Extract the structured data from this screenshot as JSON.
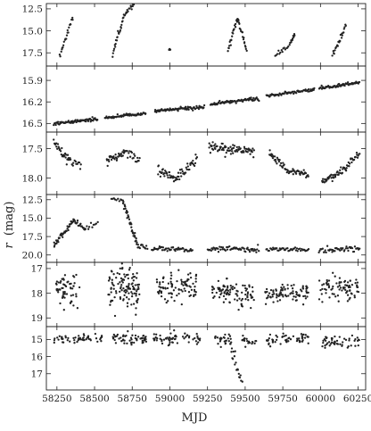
{
  "chart_data": {
    "type": "scatter",
    "xlabel": "MJD",
    "ylabel_left": "r",
    "ylabel_unit": "(mag)",
    "xlim": [
      58180,
      60300
    ],
    "xticks": [
      58250,
      58500,
      58750,
      59000,
      59250,
      59500,
      59750,
      60000,
      60250
    ],
    "xtick_labels": [
      "58250",
      "58500",
      "58750",
      "59000",
      "59250",
      "59500",
      "59750",
      "60000",
      "60250"
    ],
    "marker_color": "#222222",
    "y_inverted": true,
    "panels": [
      {
        "ylim": [
          11.9,
          19.0
        ],
        "yticks": [
          12.5,
          15.0,
          17.5
        ],
        "ytick_labels": [
          "12.5",
          "15.0",
          "17.5"
        ],
        "segments": [
          {
            "type": "line",
            "x0": 58270,
            "x1": 58355,
            "y0": 17.6,
            "y1": 13.5,
            "n": 22,
            "spread": 0.35
          },
          {
            "type": "line",
            "x0": 58620,
            "x1": 58690,
            "y0": 17.7,
            "y1": 13.6,
            "n": 22,
            "spread": 0.4
          },
          {
            "type": "line",
            "x0": 58690,
            "x1": 58760,
            "y0": 13.3,
            "y1": 12.0,
            "n": 18,
            "spread": 0.3
          },
          {
            "type": "cluster",
            "x0": 58990,
            "x1": 59005,
            "y": 17.1,
            "n": 5,
            "spread": 0.15
          },
          {
            "type": "line",
            "x0": 59385,
            "x1": 59450,
            "y0": 17.3,
            "y1": 13.5,
            "n": 22,
            "spread": 0.35
          },
          {
            "type": "line",
            "x0": 59450,
            "x1": 59510,
            "y0": 13.5,
            "y1": 17.2,
            "n": 20,
            "spread": 0.35
          },
          {
            "type": "line",
            "x0": 59700,
            "x1": 59800,
            "y0": 17.8,
            "y1": 16.5,
            "n": 16,
            "spread": 0.3
          },
          {
            "type": "line",
            "x0": 59800,
            "x1": 59830,
            "y0": 16.5,
            "y1": 15.5,
            "n": 10,
            "spread": 0.4
          },
          {
            "type": "line",
            "x0": 60080,
            "x1": 60170,
            "y0": 17.8,
            "y1": 14.5,
            "n": 24,
            "spread": 0.35
          }
        ]
      },
      {
        "ylim": [
          15.7,
          16.62
        ],
        "yticks": [
          15.9,
          16.2,
          16.5
        ],
        "ytick_labels": [
          "15.9",
          "16.2",
          "16.5"
        ],
        "segments": [
          {
            "type": "line",
            "x0": 58230,
            "x1": 58520,
            "y0": 16.5,
            "y1": 16.44,
            "n": 70,
            "spread": 0.025
          },
          {
            "type": "line",
            "x0": 58570,
            "x1": 58840,
            "y0": 16.42,
            "y1": 16.36,
            "n": 60,
            "spread": 0.02
          },
          {
            "type": "line",
            "x0": 58900,
            "x1": 59230,
            "y0": 16.33,
            "y1": 16.27,
            "n": 80,
            "spread": 0.025
          },
          {
            "type": "line",
            "x0": 59270,
            "x1": 59590,
            "y0": 16.23,
            "y1": 16.15,
            "n": 80,
            "spread": 0.025
          },
          {
            "type": "line",
            "x0": 59640,
            "x1": 59960,
            "y0": 16.12,
            "y1": 16.02,
            "n": 70,
            "spread": 0.02
          },
          {
            "type": "line",
            "x0": 59990,
            "x1": 60260,
            "y0": 16.01,
            "y1": 15.93,
            "n": 70,
            "spread": 0.02
          }
        ]
      },
      {
        "ylim": [
          17.22,
          18.28
        ],
        "yticks": [
          17.5,
          18.0
        ],
        "ytick_labels": [
          "17.5",
          "18.0"
        ],
        "segments": [
          {
            "type": "line",
            "x0": 58230,
            "x1": 58330,
            "y0": 17.4,
            "y1": 17.7,
            "n": 28,
            "spread": 0.09
          },
          {
            "type": "line",
            "x0": 58330,
            "x1": 58410,
            "y0": 17.7,
            "y1": 17.8,
            "n": 14,
            "spread": 0.08
          },
          {
            "type": "line",
            "x0": 58580,
            "x1": 58700,
            "y0": 17.7,
            "y1": 17.58,
            "n": 32,
            "spread": 0.08
          },
          {
            "type": "line",
            "x0": 58700,
            "x1": 58800,
            "y0": 17.55,
            "y1": 17.7,
            "n": 20,
            "spread": 0.08
          },
          {
            "type": "line",
            "x0": 58920,
            "x1": 59050,
            "y0": 17.85,
            "y1": 18.05,
            "n": 35,
            "spread": 0.08
          },
          {
            "type": "line",
            "x0": 59050,
            "x1": 59180,
            "y0": 18.0,
            "y1": 17.65,
            "n": 32,
            "spread": 0.09
          },
          {
            "type": "line",
            "x0": 59260,
            "x1": 59420,
            "y0": 17.45,
            "y1": 17.55,
            "n": 45,
            "spread": 0.09
          },
          {
            "type": "line",
            "x0": 59420,
            "x1": 59560,
            "y0": 17.5,
            "y1": 17.55,
            "n": 35,
            "spread": 0.08
          },
          {
            "type": "line",
            "x0": 59660,
            "x1": 59780,
            "y0": 17.6,
            "y1": 17.85,
            "n": 30,
            "spread": 0.08
          },
          {
            "type": "line",
            "x0": 59780,
            "x1": 59920,
            "y0": 17.85,
            "y1": 17.95,
            "n": 32,
            "spread": 0.06
          },
          {
            "type": "line",
            "x0": 60010,
            "x1": 60100,
            "y0": 18.05,
            "y1": 17.95,
            "n": 25,
            "spread": 0.05
          },
          {
            "type": "line",
            "x0": 60100,
            "x1": 60260,
            "y0": 17.95,
            "y1": 17.58,
            "n": 40,
            "spread": 0.07
          }
        ]
      },
      {
        "ylim": [
          11.8,
          21.0
        ],
        "yticks": [
          12.5,
          15.0,
          17.5,
          20.0
        ],
        "ytick_labels": [
          "12.5",
          "15.0",
          "17.5",
          "20.0"
        ],
        "segments": [
          {
            "type": "line",
            "x0": 58230,
            "x1": 58360,
            "y0": 18.7,
            "y1": 15.3,
            "n": 38,
            "spread": 0.35
          },
          {
            "type": "line",
            "x0": 58360,
            "x1": 58440,
            "y0": 15.3,
            "y1": 16.6,
            "n": 18,
            "spread": 0.4
          },
          {
            "type": "line",
            "x0": 58440,
            "x1": 58520,
            "y0": 16.5,
            "y1": 15.8,
            "n": 10,
            "spread": 0.4
          },
          {
            "type": "line",
            "x0": 58610,
            "x1": 58690,
            "y0": 12.2,
            "y1": 12.6,
            "n": 10,
            "spread": 0.3
          },
          {
            "type": "line",
            "x0": 58690,
            "x1": 58780,
            "y0": 12.8,
            "y1": 18.3,
            "n": 35,
            "spread": 0.5
          },
          {
            "type": "line",
            "x0": 58780,
            "x1": 58850,
            "y0": 18.8,
            "y1": 19.0,
            "n": 14,
            "spread": 0.35
          },
          {
            "type": "line",
            "x0": 58880,
            "x1": 59150,
            "y0": 19.1,
            "y1": 19.3,
            "n": 50,
            "spread": 0.3
          },
          {
            "type": "line",
            "x0": 59250,
            "x1": 59590,
            "y0": 19.1,
            "y1": 19.3,
            "n": 60,
            "spread": 0.3
          },
          {
            "type": "line",
            "x0": 59640,
            "x1": 59920,
            "y0": 19.2,
            "y1": 19.3,
            "n": 45,
            "spread": 0.3
          },
          {
            "type": "line",
            "x0": 59990,
            "x1": 60260,
            "y0": 19.4,
            "y1": 19.1,
            "n": 45,
            "spread": 0.35
          }
        ]
      },
      {
        "ylim": [
          16.75,
          19.35
        ],
        "yticks": [
          17,
          18,
          19
        ],
        "ytick_labels": [
          "17",
          "18",
          "19"
        ],
        "segments": [
          {
            "type": "cluster",
            "x0": 58230,
            "x1": 58400,
            "y": 17.8,
            "n": 60,
            "spread": 0.55
          },
          {
            "type": "cluster",
            "x0": 58590,
            "x1": 58800,
            "y": 17.75,
            "n": 110,
            "spread": 0.65
          },
          {
            "type": "cluster",
            "x0": 58910,
            "x1": 59180,
            "y": 17.75,
            "n": 90,
            "spread": 0.55
          },
          {
            "type": "cluster",
            "x0": 59280,
            "x1": 59560,
            "y": 18.0,
            "n": 90,
            "spread": 0.5
          },
          {
            "type": "cluster",
            "x0": 59630,
            "x1": 59920,
            "y": 18.0,
            "n": 90,
            "spread": 0.3
          },
          {
            "type": "cluster",
            "x0": 59990,
            "x1": 60260,
            "y": 17.8,
            "n": 80,
            "spread": 0.5
          }
        ]
      },
      {
        "ylim": [
          14.25,
          17.95
        ],
        "yticks": [
          15,
          16,
          17
        ],
        "ytick_labels": [
          "15",
          "16",
          "17"
        ],
        "segments": [
          {
            "type": "cluster",
            "x0": 58230,
            "x1": 58550,
            "y": 14.95,
            "n": 50,
            "spread": 0.25
          },
          {
            "type": "cluster",
            "x0": 58620,
            "x1": 58850,
            "y": 14.95,
            "n": 55,
            "spread": 0.3
          },
          {
            "type": "cluster",
            "x0": 58890,
            "x1": 59210,
            "y": 15.0,
            "n": 60,
            "spread": 0.35
          },
          {
            "type": "cluster",
            "x0": 59300,
            "x1": 59410,
            "y": 15.0,
            "n": 25,
            "spread": 0.3
          },
          {
            "type": "line",
            "x0": 59400,
            "x1": 59480,
            "y0": 15.3,
            "y1": 17.6,
            "n": 22,
            "spread": 0.4
          },
          {
            "type": "cluster",
            "x0": 59480,
            "x1": 59580,
            "y": 15.1,
            "n": 20,
            "spread": 0.25
          },
          {
            "type": "cluster",
            "x0": 59640,
            "x1": 59920,
            "y": 15.0,
            "n": 55,
            "spread": 0.28
          },
          {
            "type": "cluster",
            "x0": 59990,
            "x1": 60260,
            "y": 15.1,
            "n": 50,
            "spread": 0.35
          }
        ]
      }
    ]
  }
}
